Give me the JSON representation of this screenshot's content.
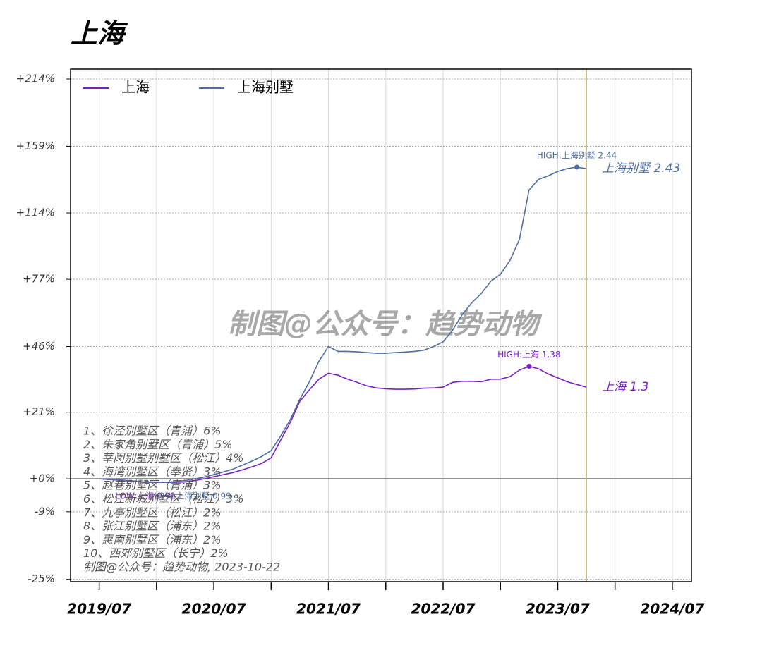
{
  "chart_data": {
    "type": "line",
    "title": "上海",
    "watermark": "制图@公众号：趋势动物",
    "x": [
      "2019/07",
      "2019/08",
      "2019/09",
      "2019/10",
      "2019/11",
      "2019/12",
      "2020/01",
      "2020/02",
      "2020/03",
      "2020/04",
      "2020/05",
      "2020/06",
      "2020/07",
      "2020/08",
      "2020/09",
      "2020/10",
      "2020/11",
      "2020/12",
      "2021/01",
      "2021/02",
      "2021/03",
      "2021/04",
      "2021/05",
      "2021/06",
      "2021/07",
      "2021/08",
      "2021/09",
      "2021/10",
      "2021/11",
      "2021/12",
      "2022/01",
      "2022/02",
      "2022/03",
      "2022/04",
      "2022/05",
      "2022/06",
      "2022/07",
      "2022/08",
      "2022/09",
      "2022/10",
      "2022/11",
      "2022/12",
      "2023/01",
      "2023/02",
      "2023/03",
      "2023/04",
      "2023/05",
      "2023/06",
      "2023/07",
      "2023/08",
      "2023/09",
      "2023/10"
    ],
    "series": [
      {
        "name": "上海",
        "color": "#7b1fc4",
        "high_label": "HIGH:上海 1.38",
        "low_label": "LOW:上海 0.99",
        "end_label": "上海 1.3",
        "values": [
          1.0,
          0.998,
          0.996,
          0.994,
          0.992,
          0.99,
          0.99,
          0.99,
          0.99,
          0.991,
          0.995,
          1.0,
          1.006,
          1.012,
          1.018,
          1.026,
          1.035,
          1.045,
          1.062,
          1.117,
          1.175,
          1.248,
          1.29,
          1.33,
          1.353,
          1.345,
          1.33,
          1.318,
          1.305,
          1.297,
          1.294,
          1.292,
          1.292,
          1.293,
          1.296,
          1.297,
          1.3,
          1.318,
          1.322,
          1.322,
          1.32,
          1.33,
          1.33,
          1.34,
          1.365,
          1.38,
          1.37,
          1.35,
          1.335,
          1.32,
          1.31,
          1.3
        ]
      },
      {
        "name": "上海别墅",
        "color": "#4f6f9f",
        "high_label": "HIGH:上海别墅 2.44",
        "low_label": "LOW:上海别墅 0.99",
        "end_label": "上海别墅 2.43",
        "values": [
          1.0,
          0.998,
          0.997,
          0.995,
          0.993,
          0.99,
          0.99,
          0.99,
          0.992,
          0.995,
          1.0,
          1.005,
          1.012,
          1.02,
          1.028,
          1.04,
          1.052,
          1.066,
          1.084,
          1.13,
          1.185,
          1.255,
          1.32,
          1.4,
          1.46,
          1.44,
          1.44,
          1.438,
          1.435,
          1.432,
          1.432,
          1.435,
          1.437,
          1.44,
          1.445,
          1.46,
          1.48,
          1.53,
          1.6,
          1.655,
          1.7,
          1.76,
          1.795,
          1.868,
          1.985,
          2.285,
          2.356,
          2.38,
          2.41,
          2.43,
          2.44,
          2.43
        ]
      }
    ],
    "log_scale": true,
    "ylim": [
      0.745,
      3.23
    ],
    "yticks": [
      {
        "value": 3.14,
        "label": "+214%"
      },
      {
        "value": 2.59,
        "label": "+159%"
      },
      {
        "value": 2.14,
        "label": "+114%"
      },
      {
        "value": 1.77,
        "label": "+77%"
      },
      {
        "value": 1.46,
        "label": "+46%"
      },
      {
        "value": 1.21,
        "label": "+21%"
      },
      {
        "value": 1,
        "label": "+0%"
      },
      {
        "value": 0.91,
        "label": "-9%"
      },
      {
        "value": 0.75,
        "label": "-25%"
      }
    ],
    "xlim": [
      "2019/04",
      "2024/09"
    ],
    "xticks": [
      "2019/07",
      "2020/07",
      "2021/07",
      "2022/07",
      "2023/07",
      "2024/07"
    ],
    "xminor_ticks": [
      "2020/01",
      "2021/01",
      "2022/01",
      "2023/01",
      "2024/01"
    ],
    "vline": "2023/10",
    "grid": true,
    "legend": "top-left",
    "notes": [
      "1、徐泾别墅区（青浦）6%",
      "2、朱家角别墅区（青浦）5%",
      "3、莘闵别墅别墅区（松江）4%",
      "4、海湾别墅区（奉贤）3%",
      "5、赵巷别墅区（青浦）3%",
      "6、松江新城别墅区（松江）3%",
      "7、九亭别墅区（松江）2%",
      "8、张江别墅区（浦东）2%",
      "9、惠南别墅区（浦东）2%",
      "10、西郊别墅区（长宁）2%",
      "制图@公众号：趋势动物, 2023-10-22"
    ]
  }
}
